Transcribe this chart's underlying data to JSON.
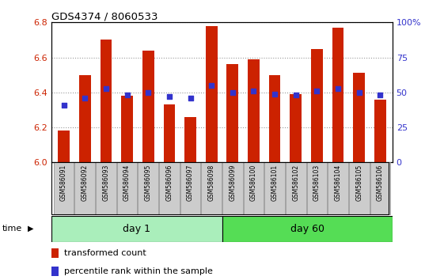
{
  "title": "GDS4374 / 8060533",
  "samples": [
    "GSM586091",
    "GSM586092",
    "GSM586093",
    "GSM586094",
    "GSM586095",
    "GSM586096",
    "GSM586097",
    "GSM586098",
    "GSM586099",
    "GSM586100",
    "GSM586101",
    "GSM586102",
    "GSM586103",
    "GSM586104",
    "GSM586105",
    "GSM586106"
  ],
  "transformed_count": [
    6.18,
    6.5,
    6.7,
    6.38,
    6.64,
    6.33,
    6.26,
    6.78,
    6.56,
    6.59,
    6.5,
    6.39,
    6.65,
    6.77,
    6.51,
    6.36
  ],
  "percentile_rank": [
    41,
    46,
    53,
    48,
    50,
    47,
    46,
    55,
    50,
    51,
    49,
    48,
    51,
    53,
    50,
    48
  ],
  "day1_count": 8,
  "day60_count": 8,
  "ylim_left": [
    6.0,
    6.8
  ],
  "ylim_right": [
    0,
    100
  ],
  "yticks_left": [
    6.0,
    6.2,
    6.4,
    6.6,
    6.8
  ],
  "yticks_right": [
    0,
    25,
    50,
    75,
    100
  ],
  "bar_color": "#cc2200",
  "percentile_color": "#3333cc",
  "day1_color": "#aaeebb",
  "day60_color": "#55dd55",
  "bg_color": "#ffffff",
  "grid_color": "#999999",
  "tick_label_color_left": "#cc2200",
  "tick_label_color_right": "#3333cc",
  "bar_bottom": 6.0,
  "bar_width": 0.55,
  "tick_box_color": "#cccccc",
  "tick_box_edge_color": "#888888"
}
